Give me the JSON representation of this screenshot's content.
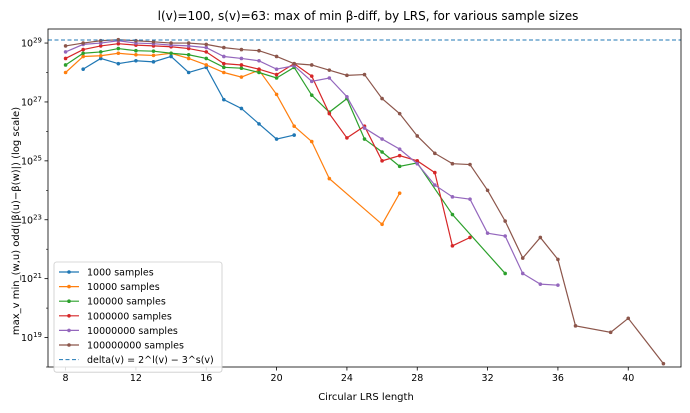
{
  "chart_data": {
    "type": "line",
    "title": "l(v)=100, s(v)=63: max of min β-diff, by LRS, for various sample sizes",
    "xlabel": "Circular LRS length",
    "ylabel": "max_v min_(w,u) odd(|β(u)−β(w)|)  (log scale)",
    "xlim": [
      7,
      43
    ],
    "ylim": [
      1e+18,
      3e+29
    ],
    "y_scale": "log",
    "x_ticks": [
      8,
      12,
      16,
      20,
      24,
      28,
      32,
      36,
      40
    ],
    "y_ticks": [
      {
        "value": 1e+19,
        "base": "10",
        "exp": "19"
      },
      {
        "value": 1e+21,
        "base": "10",
        "exp": "21"
      },
      {
        "value": 1e+23,
        "base": "10",
        "exp": "23"
      },
      {
        "value": 1e+25,
        "base": "10",
        "exp": "25"
      },
      {
        "value": 1e+27,
        "base": "10",
        "exp": "27"
      },
      {
        "value": 1e+29,
        "base": "10",
        "exp": "29"
      }
    ],
    "grid": false,
    "legend_position": "bottom-left",
    "reference_line": {
      "name": "delta(v) = 2^l(v) − 3^s(v)",
      "value": 1.268e+29,
      "color": "#1f77b4",
      "style": "dashed"
    },
    "series": [
      {
        "name": "1000 samples",
        "color": "#1f77b4",
        "x": [
          9,
          10,
          11,
          12,
          13,
          14,
          15,
          16,
          17,
          18,
          19,
          20,
          21
        ],
        "y": [
          1.3e+28,
          3e+28,
          2e+28,
          2.5e+28,
          2.3e+28,
          3.5e+28,
          1e+28,
          1.5e+28,
          1.2e+27,
          6e+26,
          1.8e+26,
          5.5e+25,
          7.5e+25
        ]
      },
      {
        "name": "10000 samples",
        "color": "#ff7f0e",
        "x": [
          8,
          9,
          10,
          11,
          12,
          13,
          14,
          15,
          16,
          17,
          18,
          19,
          20,
          21,
          22,
          23,
          26,
          27
        ],
        "y": [
          1e+28,
          3.5e+28,
          3.7e+28,
          4.5e+28,
          4e+28,
          3.8e+28,
          4.5e+28,
          3e+28,
          1.8e+28,
          1e+28,
          7e+27,
          1.2e+28,
          1.8e+27,
          1.5e+26,
          4.5e+25,
          2.5e+24,
          7e+22,
          8e+23
        ]
      },
      {
        "name": "100000 samples",
        "color": "#2ca02c",
        "x": [
          8,
          9,
          10,
          11,
          12,
          13,
          14,
          15,
          16,
          17,
          18,
          19,
          20,
          21,
          22,
          23,
          24,
          25,
          26,
          27,
          28,
          30,
          33
        ],
        "y": [
          1.8e+28,
          4.5e+28,
          5e+28,
          6.5e+28,
          5.5e+28,
          5.3e+28,
          4.5e+28,
          4e+28,
          3e+28,
          1.5e+28,
          1.4e+28,
          1e+28,
          6.5e+27,
          1.5e+28,
          1.7e+27,
          4.5e+26,
          1.3e+27,
          5.5e+25,
          2e+25,
          6.5e+24,
          8.5e+24,
          1.5e+23,
          1.5e+21
        ]
      },
      {
        "name": "1000000 samples",
        "color": "#d62728",
        "x": [
          8,
          9,
          10,
          11,
          12,
          13,
          14,
          15,
          16,
          17,
          18,
          19,
          20,
          21,
          22,
          23,
          24,
          25,
          26,
          27,
          28,
          29,
          30,
          31
        ],
        "y": [
          3e+28,
          6e+28,
          8e+28,
          9.5e+28,
          8.5e+28,
          8e+28,
          7.5e+28,
          6.5e+28,
          5e+28,
          2e+28,
          1.8e+28,
          1.3e+28,
          8.5e+27,
          2e+28,
          7.5e+27,
          4e+26,
          6e+25,
          1.5e+26,
          1e+25,
          1.5e+25,
          1e+25,
          4e+24,
          1.3e+22,
          2.5e+22
        ]
      },
      {
        "name": "10000000 samples",
        "color": "#9467bd",
        "x": [
          8,
          9,
          10,
          11,
          12,
          13,
          14,
          15,
          16,
          17,
          18,
          19,
          20,
          21,
          22,
          23,
          24,
          25,
          26,
          27,
          28,
          29,
          30,
          31,
          32,
          33,
          34,
          35,
          36
        ],
        "y": [
          5e+28,
          9e+28,
          1e+29,
          1.2e+29,
          1e+29,
          9.5e+28,
          8.5e+28,
          8e+28,
          7e+28,
          3.5e+28,
          3e+28,
          2.5e+28,
          1.3e+28,
          1.7e+28,
          5e+27,
          6.5e+27,
          1.5e+27,
          1.3e+26,
          5.5e+25,
          2.5e+25,
          8e+24,
          1.5e+24,
          6e+23,
          5e+23,
          3.5e+22,
          2.8e+22,
          1.5e+21,
          6.5e+20,
          6e+20
        ]
      },
      {
        "name": "100000000 samples",
        "color": "#8c564b",
        "x": [
          8,
          9,
          10,
          11,
          12,
          13,
          14,
          15,
          16,
          17,
          18,
          19,
          20,
          21,
          22,
          23,
          24,
          25,
          26,
          27,
          28,
          29,
          30,
          31,
          32,
          33,
          34,
          35,
          36,
          37,
          39,
          40,
          42
        ],
        "y": [
          8e+28,
          1e+29,
          1.2e+29,
          1.3e+29,
          1.2e+29,
          1.1e+29,
          1e+29,
          1e+29,
          9e+28,
          7e+28,
          6e+28,
          5.5e+28,
          3.5e+28,
          2e+28,
          1.8e+28,
          1.2e+28,
          8e+27,
          8.5e+27,
          1.3e+27,
          4e+26,
          7e+25,
          1.8e+25,
          8e+24,
          7.5e+24,
          1e+24,
          9e+22,
          5e+21,
          2.5e+22,
          4.5e+21,
          2.5e+19,
          1.5e+19,
          4.5e+19,
          1.3e+18
        ]
      }
    ]
  }
}
